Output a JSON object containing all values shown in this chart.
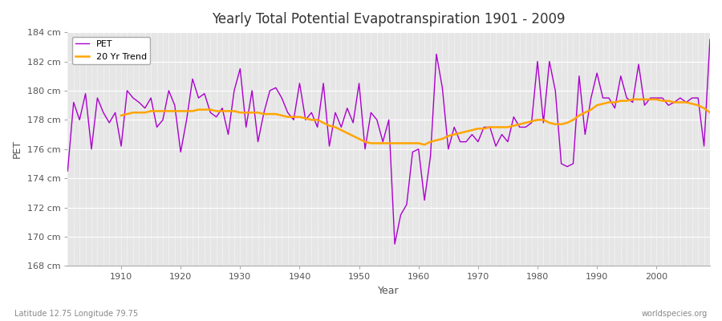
{
  "title": "Yearly Total Potential Evapotranspiration 1901 - 2009",
  "xlabel": "Year",
  "ylabel": "PET",
  "lat_lon_label": "Latitude 12.75 Longitude 79.75",
  "website_label": "worldspecies.org",
  "pet_color": "#AA00CC",
  "trend_color": "#FFA500",
  "background_color": "#E6E6E6",
  "ylim": [
    168,
    184
  ],
  "ytick_labels": [
    "168 cm",
    "170 cm",
    "172 cm",
    "174 cm",
    "176 cm",
    "178 cm",
    "180 cm",
    "182 cm",
    "184 cm"
  ],
  "ytick_values": [
    168,
    170,
    172,
    174,
    176,
    178,
    180,
    182,
    184
  ],
  "years": [
    1901,
    1902,
    1903,
    1904,
    1905,
    1906,
    1907,
    1908,
    1909,
    1910,
    1911,
    1912,
    1913,
    1914,
    1915,
    1916,
    1917,
    1918,
    1919,
    1920,
    1921,
    1922,
    1923,
    1924,
    1925,
    1926,
    1927,
    1928,
    1929,
    1930,
    1931,
    1932,
    1933,
    1934,
    1935,
    1936,
    1937,
    1938,
    1939,
    1940,
    1941,
    1942,
    1943,
    1944,
    1945,
    1946,
    1947,
    1948,
    1949,
    1950,
    1951,
    1952,
    1953,
    1954,
    1955,
    1956,
    1957,
    1958,
    1959,
    1960,
    1961,
    1962,
    1963,
    1964,
    1965,
    1966,
    1967,
    1968,
    1969,
    1970,
    1971,
    1972,
    1973,
    1974,
    1975,
    1976,
    1977,
    1978,
    1979,
    1980,
    1981,
    1982,
    1983,
    1984,
    1985,
    1986,
    1987,
    1988,
    1989,
    1990,
    1991,
    1992,
    1993,
    1994,
    1995,
    1996,
    1997,
    1998,
    1999,
    2000,
    2001,
    2002,
    2003,
    2004,
    2005,
    2006,
    2007,
    2008,
    2009
  ],
  "pet_values": [
    174.5,
    179.2,
    178.0,
    179.8,
    176.0,
    179.5,
    178.5,
    177.8,
    178.5,
    176.2,
    180.0,
    179.5,
    179.2,
    178.8,
    179.5,
    177.5,
    178.0,
    180.0,
    179.0,
    175.8,
    178.0,
    180.8,
    179.5,
    179.8,
    178.5,
    178.2,
    178.8,
    177.0,
    180.0,
    181.5,
    177.5,
    180.0,
    176.5,
    178.5,
    180.0,
    180.2,
    179.5,
    178.5,
    178.0,
    180.5,
    178.0,
    178.5,
    177.5,
    180.5,
    176.2,
    178.5,
    177.5,
    178.8,
    177.8,
    180.5,
    176.0,
    178.5,
    178.0,
    176.5,
    178.0,
    169.5,
    171.5,
    172.2,
    175.8,
    176.0,
    172.5,
    175.5,
    182.5,
    180.2,
    176.0,
    177.5,
    176.5,
    176.5,
    177.0,
    176.5,
    177.5,
    177.5,
    176.2,
    177.0,
    176.5,
    178.2,
    177.5,
    177.5,
    177.8,
    182.0,
    177.8,
    182.0,
    180.0,
    175.0,
    174.8,
    175.0,
    181.0,
    177.0,
    179.5,
    181.2,
    179.5,
    179.5,
    178.8,
    181.0,
    179.5,
    179.2,
    181.8,
    179.0,
    179.5,
    179.5,
    179.5,
    179.0,
    179.2,
    179.5,
    179.2,
    179.5,
    179.5,
    176.2,
    183.5
  ],
  "trend_values": [
    null,
    null,
    null,
    null,
    null,
    null,
    null,
    null,
    null,
    178.3,
    178.4,
    178.5,
    178.5,
    178.5,
    178.6,
    178.6,
    178.6,
    178.6,
    178.6,
    178.6,
    178.6,
    178.6,
    178.7,
    178.7,
    178.7,
    178.6,
    178.6,
    178.6,
    178.6,
    178.5,
    178.5,
    178.5,
    178.5,
    178.4,
    178.4,
    178.4,
    178.3,
    178.2,
    178.2,
    178.2,
    178.1,
    178.0,
    178.0,
    177.8,
    177.6,
    177.5,
    177.3,
    177.1,
    176.9,
    176.7,
    176.5,
    176.4,
    176.4,
    176.4,
    176.4,
    176.4,
    176.4,
    176.4,
    176.4,
    176.4,
    176.3,
    176.5,
    176.6,
    176.7,
    176.9,
    177.0,
    177.1,
    177.2,
    177.3,
    177.4,
    177.4,
    177.5,
    177.5,
    177.5,
    177.5,
    177.6,
    177.7,
    177.8,
    177.9,
    178.0,
    178.0,
    177.8,
    177.7,
    177.7,
    177.8,
    178.0,
    178.3,
    178.5,
    178.7,
    179.0,
    179.1,
    179.2,
    179.2,
    179.3,
    179.3,
    179.4,
    179.4,
    179.4,
    179.4,
    179.4,
    179.3,
    179.3,
    179.2,
    179.2,
    179.2,
    179.1,
    179.0,
    178.8,
    178.5
  ]
}
